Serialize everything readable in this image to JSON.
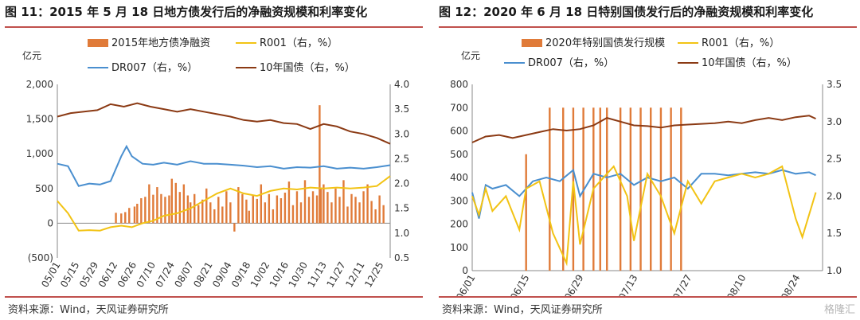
{
  "watermark": "格隆汇",
  "panels": [
    {
      "id": "left",
      "title": "图 11：2015 年 5 月 18 日地方债发行后的净融资规模和利率变化",
      "source": "资料来源：Wind，天风证券研究所",
      "chart_data": {
        "type": "bar+line",
        "left_unit": "亿元",
        "left_ticks": [
          "2,000",
          "1,500",
          "1,000",
          "500",
          "0",
          "(500)"
        ],
        "left_ylim": [
          -500,
          2000
        ],
        "right_ticks": [
          "4.0",
          "3.5",
          "3.0",
          "2.5",
          "2.0",
          "1.5",
          "1.0",
          "0.5"
        ],
        "right_ylim": [
          0.5,
          4.0
        ],
        "x_ticks": [
          "05/01",
          "05/15",
          "05/29",
          "06/12",
          "06/26",
          "07/10",
          "07/24",
          "08/07",
          "08/21",
          "09/04",
          "09/18",
          "10/02",
          "10/16",
          "10/30",
          "11/13",
          "11/27",
          "12/11",
          "12/25"
        ],
        "legend": [
          "2015年地方债净融资",
          "R001（右，%）",
          "DR007（右，%）",
          "10年国债（右，%）"
        ],
        "colors": {
          "bar": "#e07b39",
          "r001": "#f2c314",
          "dr007": "#4a8fcf",
          "gov10": "#8b3a14"
        },
        "bars": [
          [
            0.22,
            150
          ],
          [
            0.24,
            140
          ],
          [
            0.255,
            160
          ],
          [
            0.27,
            220
          ],
          [
            0.29,
            240
          ],
          [
            0.3,
            280
          ],
          [
            0.315,
            360
          ],
          [
            0.33,
            380
          ],
          [
            0.345,
            560
          ],
          [
            0.36,
            410
          ],
          [
            0.375,
            520
          ],
          [
            0.39,
            420
          ],
          [
            0.405,
            380
          ],
          [
            0.42,
            400
          ],
          [
            0.43,
            640
          ],
          [
            0.445,
            580
          ],
          [
            0.46,
            450
          ],
          [
            0.475,
            560
          ],
          [
            0.49,
            400
          ],
          [
            0.5,
            300
          ],
          [
            0.515,
            420
          ],
          [
            0.53,
            260
          ],
          [
            0.545,
            340
          ],
          [
            0.56,
            500
          ],
          [
            0.575,
            300
          ],
          [
            0.59,
            200
          ],
          [
            0.605,
            380
          ],
          [
            0.62,
            240
          ],
          [
            0.635,
            460
          ],
          [
            0.65,
            300
          ],
          [
            0.665,
            -120
          ],
          [
            0.68,
            520
          ],
          [
            0.695,
            420
          ],
          [
            0.71,
            340
          ],
          [
            0.72,
            180
          ],
          [
            0.735,
            410
          ],
          [
            0.75,
            350
          ],
          [
            0.765,
            560
          ],
          [
            0.78,
            300
          ],
          [
            0.795,
            420
          ],
          [
            0.81,
            200
          ],
          [
            0.825,
            400
          ],
          [
            0.84,
            360
          ],
          [
            0.855,
            440
          ],
          [
            0.87,
            600
          ],
          [
            0.885,
            260
          ],
          [
            0.9,
            460
          ],
          [
            0.915,
            300
          ],
          [
            0.93,
            620
          ],
          [
            0.945,
            380
          ],
          [
            0.96,
            460
          ],
          [
            0.975,
            400
          ],
          [
            0.985,
            1700
          ],
          [
            0.99,
            500
          ],
          [
            1.0,
            560
          ],
          [
            1.015,
            450
          ],
          [
            1.03,
            300
          ],
          [
            1.045,
            500
          ],
          [
            1.06,
            380
          ],
          [
            1.075,
            620
          ],
          [
            1.09,
            240
          ],
          [
            1.105,
            420
          ],
          [
            1.12,
            380
          ],
          [
            1.135,
            300
          ],
          [
            1.15,
            460
          ],
          [
            1.165,
            560
          ],
          [
            1.18,
            320
          ],
          [
            1.195,
            200
          ],
          [
            1.21,
            400
          ],
          [
            1.225,
            260
          ]
        ],
        "gov10": [
          [
            0,
            3.35
          ],
          [
            0.05,
            3.42
          ],
          [
            0.1,
            3.45
          ],
          [
            0.15,
            3.48
          ],
          [
            0.2,
            3.6
          ],
          [
            0.25,
            3.55
          ],
          [
            0.3,
            3.62
          ],
          [
            0.35,
            3.55
          ],
          [
            0.4,
            3.5
          ],
          [
            0.45,
            3.45
          ],
          [
            0.5,
            3.5
          ],
          [
            0.55,
            3.45
          ],
          [
            0.6,
            3.4
          ],
          [
            0.65,
            3.35
          ],
          [
            0.7,
            3.28
          ],
          [
            0.75,
            3.25
          ],
          [
            0.8,
            3.28
          ],
          [
            0.85,
            3.22
          ],
          [
            0.9,
            3.2
          ],
          [
            0.95,
            3.1
          ],
          [
            1.0,
            3.2
          ],
          [
            1.05,
            3.15
          ],
          [
            1.1,
            3.05
          ],
          [
            1.15,
            3.0
          ],
          [
            1.2,
            2.92
          ],
          [
            1.25,
            2.8
          ]
        ],
        "dr007": [
          [
            0,
            2.4
          ],
          [
            0.04,
            2.35
          ],
          [
            0.08,
            1.95
          ],
          [
            0.12,
            2.0
          ],
          [
            0.16,
            1.98
          ],
          [
            0.2,
            2.05
          ],
          [
            0.24,
            2.55
          ],
          [
            0.26,
            2.75
          ],
          [
            0.28,
            2.55
          ],
          [
            0.32,
            2.4
          ],
          [
            0.36,
            2.38
          ],
          [
            0.4,
            2.42
          ],
          [
            0.45,
            2.38
          ],
          [
            0.5,
            2.45
          ],
          [
            0.55,
            2.4
          ],
          [
            0.6,
            2.4
          ],
          [
            0.65,
            2.38
          ],
          [
            0.7,
            2.36
          ],
          [
            0.75,
            2.33
          ],
          [
            0.8,
            2.35
          ],
          [
            0.85,
            2.3
          ],
          [
            0.9,
            2.33
          ],
          [
            0.95,
            2.32
          ],
          [
            1.0,
            2.35
          ],
          [
            1.05,
            2.3
          ],
          [
            1.1,
            2.32
          ],
          [
            1.15,
            2.3
          ],
          [
            1.2,
            2.33
          ],
          [
            1.25,
            2.37
          ]
        ],
        "r001": [
          [
            0,
            1.65
          ],
          [
            0.04,
            1.4
          ],
          [
            0.08,
            1.05
          ],
          [
            0.12,
            1.06
          ],
          [
            0.16,
            1.05
          ],
          [
            0.2,
            1.12
          ],
          [
            0.24,
            1.15
          ],
          [
            0.28,
            1.12
          ],
          [
            0.32,
            1.2
          ],
          [
            0.36,
            1.25
          ],
          [
            0.4,
            1.35
          ],
          [
            0.45,
            1.4
          ],
          [
            0.5,
            1.5
          ],
          [
            0.55,
            1.65
          ],
          [
            0.6,
            1.8
          ],
          [
            0.65,
            1.9
          ],
          [
            0.7,
            1.8
          ],
          [
            0.75,
            1.75
          ],
          [
            0.8,
            1.85
          ],
          [
            0.85,
            1.9
          ],
          [
            0.9,
            1.88
          ],
          [
            0.95,
            1.92
          ],
          [
            1.0,
            1.9
          ],
          [
            1.05,
            1.92
          ],
          [
            1.1,
            1.9
          ],
          [
            1.15,
            1.92
          ],
          [
            1.2,
            1.95
          ],
          [
            1.25,
            2.15
          ]
        ]
      }
    },
    {
      "id": "right",
      "title": "图 12：2020 年 6 月 18 日特别国债发行后的净融资规模和利率变化",
      "source": "资料来源：Wind，天风证券研究所",
      "chart_data": {
        "type": "bar+line",
        "left_unit": "亿元",
        "left_ticks": [
          "800",
          "700",
          "600",
          "500",
          "400",
          "300",
          "200",
          "100",
          "0"
        ],
        "left_ylim": [
          0,
          800
        ],
        "right_ticks": [
          "3.5",
          "3.0",
          "2.5",
          "2.0",
          "1.5",
          "1.0"
        ],
        "right_ylim": [
          1.0,
          3.5
        ],
        "x_ticks": [
          "06/01",
          "06/15",
          "06/29",
          "07/13",
          "07/27",
          "08/10",
          "08/24"
        ],
        "legend": [
          "2020年特别国债发行规模",
          "R001（右，%）",
          "DR007（右，%）",
          "10年国债（右，%）"
        ],
        "colors": {
          "bar": "#e07b39",
          "r001": "#f2c314",
          "dr007": "#4a8fcf",
          "gov10": "#8b3a14"
        },
        "bars": [
          [
            0.16,
            500
          ],
          [
            0.23,
            700
          ],
          [
            0.27,
            700
          ],
          [
            0.3,
            700
          ],
          [
            0.33,
            700
          ],
          [
            0.36,
            700
          ],
          [
            0.38,
            700
          ],
          [
            0.4,
            700
          ],
          [
            0.44,
            700
          ],
          [
            0.47,
            700
          ],
          [
            0.5,
            700
          ],
          [
            0.53,
            700
          ],
          [
            0.56,
            700
          ],
          [
            0.59,
            700
          ],
          [
            0.62,
            700
          ]
        ],
        "gov10": [
          [
            0,
            2.72
          ],
          [
            0.04,
            2.8
          ],
          [
            0.08,
            2.82
          ],
          [
            0.12,
            2.78
          ],
          [
            0.16,
            2.82
          ],
          [
            0.2,
            2.86
          ],
          [
            0.24,
            2.9
          ],
          [
            0.28,
            2.88
          ],
          [
            0.32,
            2.9
          ],
          [
            0.36,
            2.95
          ],
          [
            0.4,
            3.05
          ],
          [
            0.44,
            3.0
          ],
          [
            0.48,
            2.95
          ],
          [
            0.52,
            2.94
          ],
          [
            0.56,
            2.92
          ],
          [
            0.6,
            2.95
          ],
          [
            0.64,
            2.96
          ],
          [
            0.68,
            2.97
          ],
          [
            0.72,
            2.98
          ],
          [
            0.76,
            3.0
          ],
          [
            0.8,
            2.98
          ],
          [
            0.84,
            3.02
          ],
          [
            0.88,
            3.05
          ],
          [
            0.92,
            3.02
          ],
          [
            0.96,
            3.06
          ],
          [
            1.0,
            3.08
          ],
          [
            1.02,
            3.04
          ]
        ],
        "dr007": [
          [
            0,
            2.05
          ],
          [
            0.02,
            1.7
          ],
          [
            0.04,
            2.15
          ],
          [
            0.06,
            2.1
          ],
          [
            0.1,
            2.15
          ],
          [
            0.14,
            2.0
          ],
          [
            0.18,
            2.2
          ],
          [
            0.22,
            2.25
          ],
          [
            0.26,
            2.2
          ],
          [
            0.3,
            2.35
          ],
          [
            0.32,
            2.0
          ],
          [
            0.36,
            2.3
          ],
          [
            0.4,
            2.25
          ],
          [
            0.44,
            2.3
          ],
          [
            0.48,
            2.15
          ],
          [
            0.52,
            2.25
          ],
          [
            0.56,
            2.2
          ],
          [
            0.6,
            2.25
          ],
          [
            0.64,
            2.1
          ],
          [
            0.68,
            2.3
          ],
          [
            0.72,
            2.3
          ],
          [
            0.76,
            2.28
          ],
          [
            0.8,
            2.3
          ],
          [
            0.84,
            2.32
          ],
          [
            0.88,
            2.3
          ],
          [
            0.92,
            2.35
          ],
          [
            0.96,
            2.3
          ],
          [
            1.0,
            2.32
          ],
          [
            1.02,
            2.28
          ]
        ],
        "r001": [
          [
            0,
            2.0
          ],
          [
            0.02,
            1.75
          ],
          [
            0.04,
            2.1
          ],
          [
            0.06,
            1.8
          ],
          [
            0.1,
            2.0
          ],
          [
            0.14,
            1.55
          ],
          [
            0.16,
            2.1
          ],
          [
            0.2,
            2.2
          ],
          [
            0.24,
            1.5
          ],
          [
            0.28,
            1.1
          ],
          [
            0.3,
            2.2
          ],
          [
            0.32,
            1.35
          ],
          [
            0.36,
            2.1
          ],
          [
            0.4,
            2.3
          ],
          [
            0.42,
            2.4
          ],
          [
            0.46,
            2.0
          ],
          [
            0.48,
            1.4
          ],
          [
            0.52,
            2.3
          ],
          [
            0.56,
            2.0
          ],
          [
            0.6,
            1.5
          ],
          [
            0.64,
            2.2
          ],
          [
            0.68,
            1.9
          ],
          [
            0.72,
            2.2
          ],
          [
            0.76,
            2.25
          ],
          [
            0.8,
            2.3
          ],
          [
            0.84,
            2.25
          ],
          [
            0.88,
            2.3
          ],
          [
            0.92,
            2.4
          ],
          [
            0.96,
            1.7
          ],
          [
            0.98,
            1.45
          ],
          [
            1.02,
            2.05
          ]
        ]
      }
    }
  ]
}
